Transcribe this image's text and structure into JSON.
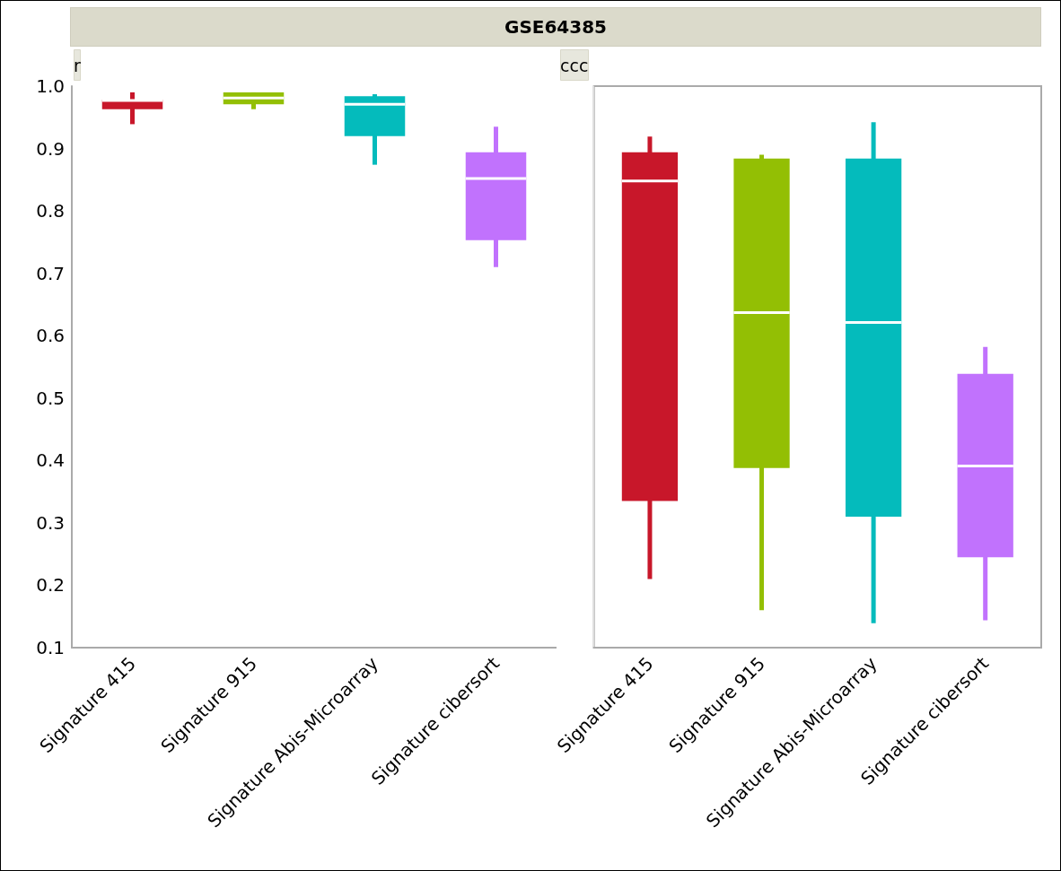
{
  "chart_data": [
    {
      "type": "box",
      "title": "GSE64385",
      "subtitle": "r",
      "categories": [
        "Signature 415",
        "Signature 915",
        "Signature Abis-Microarray",
        "Signature cibersort"
      ],
      "colors": [
        "#c8172a",
        "#93bf04",
        "#04bbbc",
        "#c172fd"
      ],
      "boxes": [
        {
          "low": 0.939,
          "q1": 0.963,
          "median": 0.977,
          "q3": 0.978,
          "high": 0.99
        },
        {
          "low": 0.963,
          "q1": 0.971,
          "median": 0.981,
          "q3": 0.99,
          "high": 0.99
        },
        {
          "low": 0.874,
          "q1": 0.92,
          "median": 0.971,
          "q3": 0.984,
          "high": 0.987
        },
        {
          "low": 0.71,
          "q1": 0.753,
          "median": 0.852,
          "q3": 0.894,
          "high": 0.935
        }
      ],
      "ylim": [
        0.1,
        1.0
      ],
      "yticks": [
        {
          "value": 0.1,
          "label": "0.1"
        },
        {
          "value": 0.2,
          "label": "0.2"
        },
        {
          "value": 0.3,
          "label": "0.3"
        },
        {
          "value": 0.4,
          "label": "0.4"
        },
        {
          "value": 0.5,
          "label": "0.5"
        },
        {
          "value": 0.6,
          "label": "0.6"
        },
        {
          "value": 0.7,
          "label": "0.7"
        },
        {
          "value": 0.8,
          "label": "0.8"
        },
        {
          "value": 0.9,
          "label": "0.9"
        },
        {
          "value": 1.0,
          "label": "1.0"
        }
      ],
      "grid": false
    },
    {
      "type": "box",
      "subtitle": "ccc",
      "categories": [
        "Signature 415",
        "Signature 915",
        "Signature Abis-Microarray",
        "Signature cibersort"
      ],
      "colors": [
        "#c8172a",
        "#93bf04",
        "#04bbbc",
        "#c172fd"
      ],
      "boxes": [
        {
          "low": 0.21,
          "q1": 0.335,
          "median": 0.848,
          "q3": 0.894,
          "high": 0.919
        },
        {
          "low": 0.16,
          "q1": 0.388,
          "median": 0.637,
          "q3": 0.884,
          "high": 0.89
        },
        {
          "low": 0.139,
          "q1": 0.31,
          "median": 0.621,
          "q3": 0.884,
          "high": 0.942
        },
        {
          "low": 0.144,
          "q1": 0.245,
          "median": 0.391,
          "q3": 0.539,
          "high": 0.582
        }
      ],
      "ylim": [
        0.1,
        1.0
      ],
      "tick_labels": "x",
      "grid": false
    }
  ]
}
